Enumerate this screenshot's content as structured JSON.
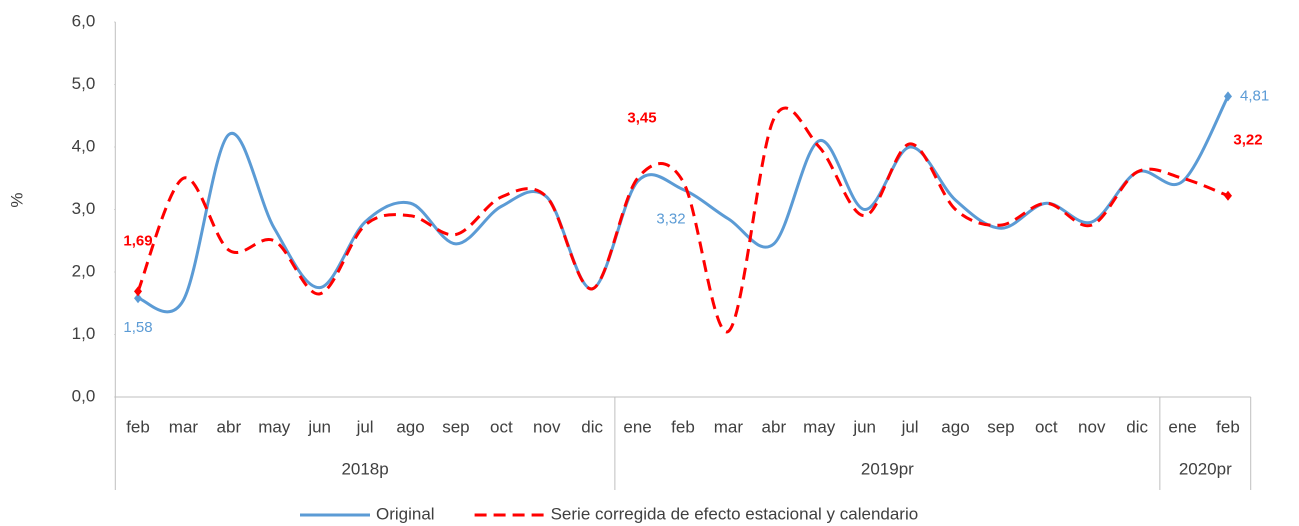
{
  "chart_data": {
    "type": "line",
    "ylabel": "%",
    "categories": [
      "feb",
      "mar",
      "abr",
      "may",
      "jun",
      "jul",
      "ago",
      "sep",
      "oct",
      "nov",
      "dic",
      "ene",
      "feb",
      "mar",
      "abr",
      "may",
      "jun",
      "jul",
      "ago",
      "sep",
      "oct",
      "nov",
      "dic",
      "ene",
      "feb"
    ],
    "groups": [
      {
        "label": "2018p",
        "count": 11
      },
      {
        "label": "2019pr",
        "count": 12
      },
      {
        "label": "2020pr",
        "count": 2
      }
    ],
    "ylim": [
      0,
      6
    ],
    "yticks": [
      {
        "value": 0,
        "label": "0,0"
      },
      {
        "value": 1,
        "label": "1,0"
      },
      {
        "value": 2,
        "label": "2,0"
      },
      {
        "value": 3,
        "label": "3,0"
      },
      {
        "value": 4,
        "label": "4,0"
      },
      {
        "value": 5,
        "label": "5,0"
      },
      {
        "value": 6,
        "label": "6,0"
      }
    ],
    "series": [
      {
        "name": "Original",
        "color": "#5b9bd5",
        "dash": false,
        "values": [
          1.58,
          1.55,
          4.2,
          2.7,
          1.75,
          2.8,
          3.1,
          2.45,
          3.05,
          3.2,
          1.73,
          3.45,
          3.32,
          2.85,
          2.45,
          4.1,
          3.0,
          4.0,
          3.15,
          2.7,
          3.1,
          2.8,
          3.6,
          3.45,
          4.81
        ],
        "value_labels": [
          "1,58",
          null,
          null,
          null,
          null,
          null,
          null,
          null,
          null,
          null,
          null,
          null,
          "3,32",
          null,
          null,
          null,
          null,
          null,
          null,
          null,
          null,
          null,
          null,
          null,
          "4,81"
        ]
      },
      {
        "name": "Serie corregida de efecto estacional y calendario",
        "color": "#ff0000",
        "dash": true,
        "values": [
          1.69,
          3.5,
          2.35,
          2.5,
          1.65,
          2.75,
          2.9,
          2.6,
          3.2,
          3.2,
          1.73,
          3.5,
          3.45,
          1.05,
          4.45,
          4.0,
          2.9,
          4.05,
          3.0,
          2.75,
          3.1,
          2.75,
          3.6,
          3.5,
          3.22
        ],
        "value_labels": [
          "1,69",
          null,
          null,
          null,
          null,
          null,
          null,
          null,
          null,
          null,
          null,
          null,
          "3,45",
          null,
          null,
          null,
          null,
          null,
          null,
          null,
          null,
          null,
          null,
          null,
          "3,22"
        ]
      }
    ]
  }
}
